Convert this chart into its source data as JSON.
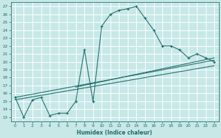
{
  "xlabel": "Humidex (Indice chaleur)",
  "background_color": "#c8e8e8",
  "grid_color": "#add8d8",
  "line_color": "#1e6b6b",
  "xlim": [
    -0.5,
    23.5
  ],
  "ylim": [
    12.5,
    27.5
  ],
  "xticks": [
    0,
    1,
    2,
    3,
    4,
    5,
    6,
    7,
    8,
    9,
    10,
    11,
    12,
    13,
    14,
    15,
    16,
    17,
    18,
    19,
    20,
    21,
    22,
    23
  ],
  "yticks": [
    13,
    14,
    15,
    16,
    17,
    18,
    19,
    20,
    21,
    22,
    23,
    24,
    25,
    26,
    27
  ],
  "line1_x": [
    0,
    1,
    2,
    3,
    4,
    5,
    6,
    7,
    8,
    9,
    10,
    11,
    12,
    13,
    14,
    15,
    16,
    17,
    18,
    19,
    20,
    21,
    22,
    23
  ],
  "line1_y": [
    15.5,
    13.0,
    15.2,
    15.5,
    13.2,
    13.5,
    13.5,
    15.0,
    21.5,
    15.0,
    24.5,
    26.0,
    26.5,
    26.7,
    27.0,
    25.5,
    24.0,
    22.0,
    22.0,
    21.5,
    20.5,
    21.0,
    20.5,
    20.0
  ],
  "line2_x": [
    0,
    23
  ],
  "line2_y": [
    15.5,
    20.2
  ],
  "line3_x": [
    0,
    23
  ],
  "line3_y": [
    15.2,
    19.5
  ],
  "line4_x": [
    7,
    23
  ],
  "line4_y": [
    16.8,
    20.5
  ]
}
